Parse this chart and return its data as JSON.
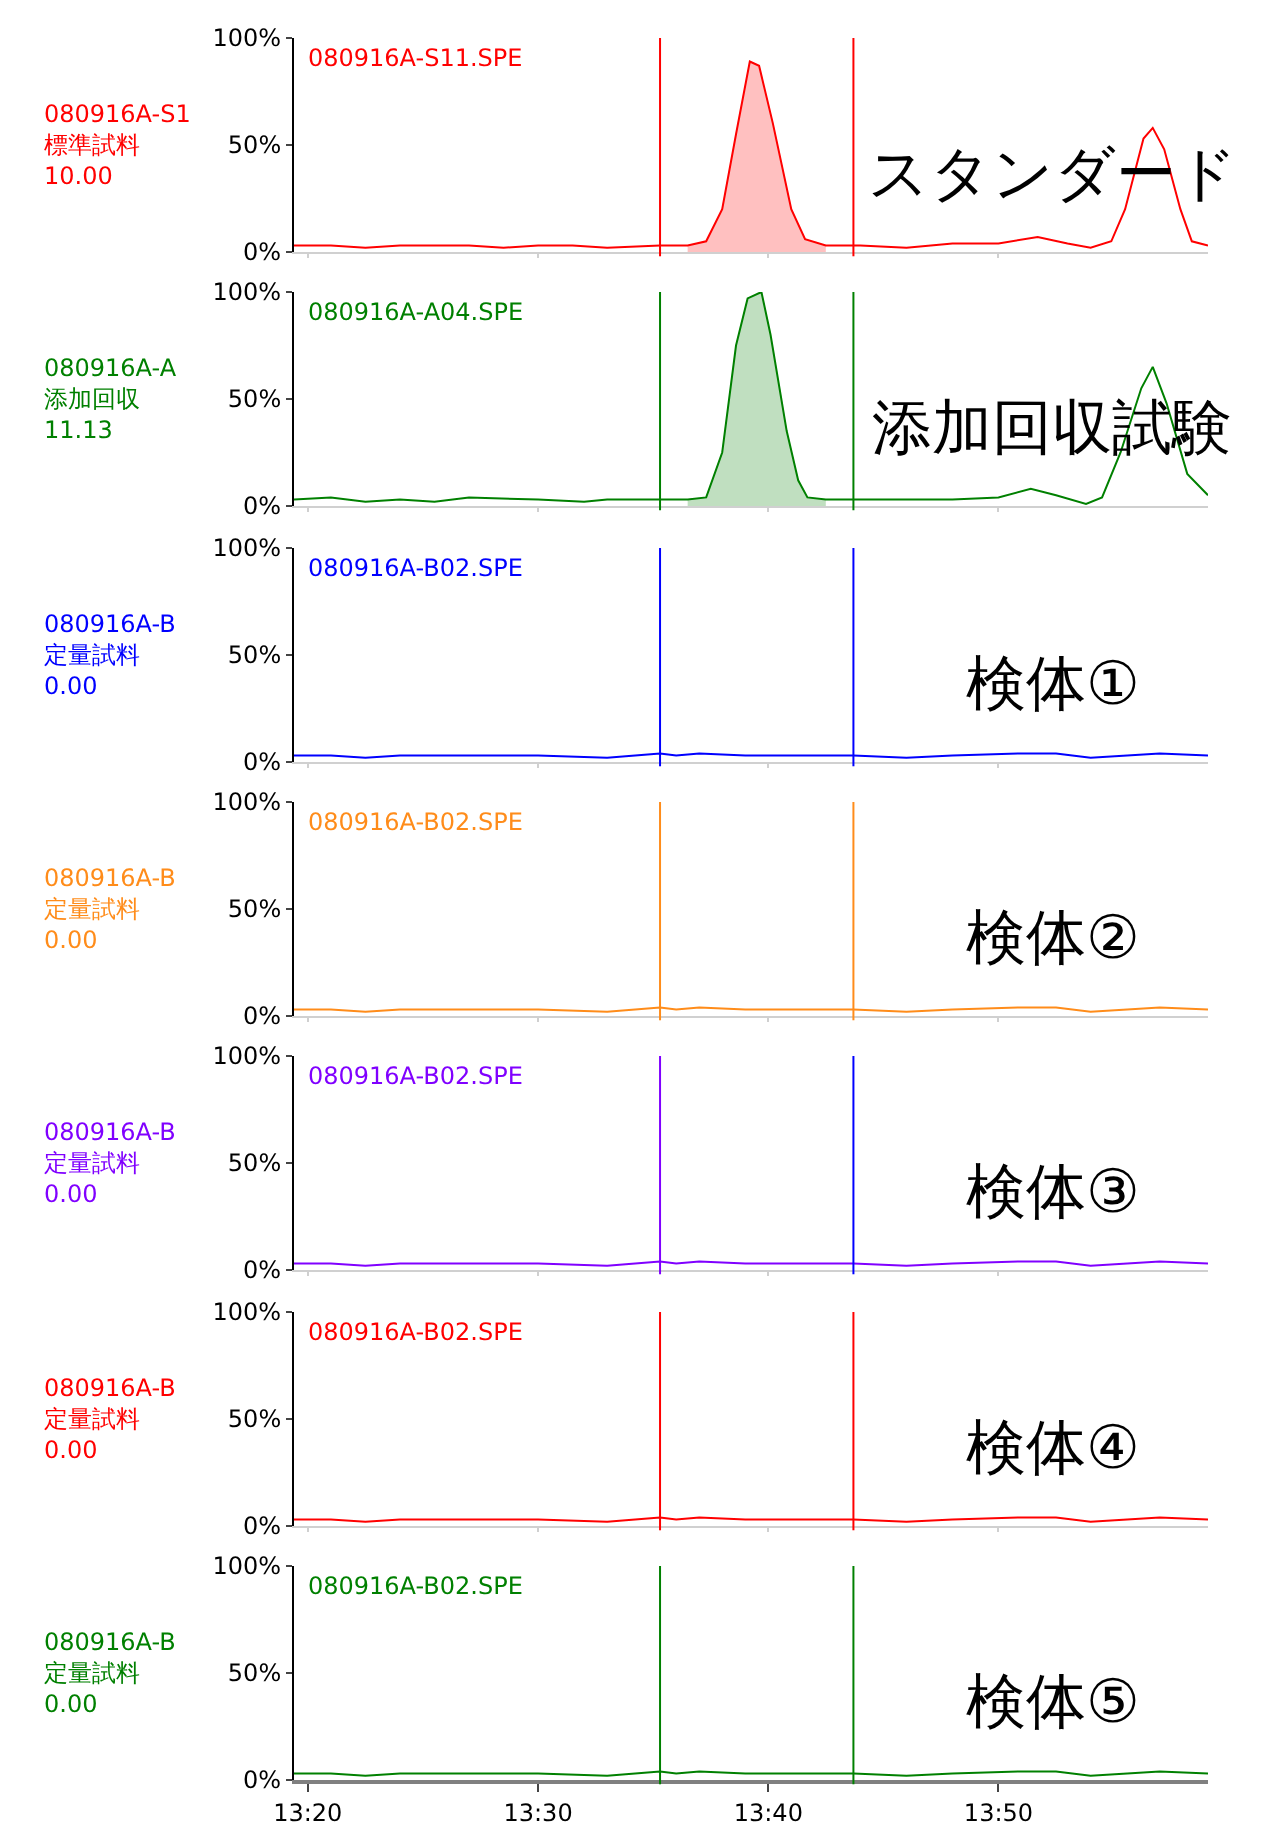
{
  "chart_data": [
    {
      "type": "line",
      "title": "080916A-S11.SPE",
      "annotations": [
        "080916A-S1\n標準試料\n10.00",
        "スタンダード"
      ],
      "xlim": [
        13.3233,
        13.985
      ],
      "xticks": [
        {
          "value": 13.3333,
          "label": null
        },
        {
          "value": 13.5,
          "label": null
        },
        {
          "value": 13.6667,
          "label": null
        },
        {
          "value": 13.8333,
          "label": null
        }
      ],
      "ylim": [
        0,
        100
      ],
      "yticks": [
        {
          "value": 0,
          "label": "0%"
        },
        {
          "value": 50,
          "label": "50%"
        },
        {
          "value": 100,
          "label": "100%"
        }
      ],
      "tick_labels": "y",
      "ref_lines": [
        {
          "axis": "x",
          "value": 13.5883,
          "color": "#ff0000"
        },
        {
          "axis": "x",
          "value": 13.7283,
          "color": "#ff0000"
        }
      ],
      "series": [
        {
          "type": "area",
          "color": "#ffc0c0",
          "x": [
            13.6083,
            13.6217,
            13.6333,
            13.6433,
            13.6533,
            13.66,
            13.67,
            13.6833,
            13.6933,
            13.7083
          ],
          "values": [
            3,
            5,
            20,
            55,
            89,
            87,
            60,
            20,
            6,
            3
          ]
        },
        {
          "color": "#ff0000",
          "x": [
            13.3233,
            13.35,
            13.375,
            13.4,
            13.45,
            13.475,
            13.5,
            13.525,
            13.55,
            13.5883,
            13.6083,
            13.6217,
            13.6333,
            13.6433,
            13.6533,
            13.66,
            13.67,
            13.6833,
            13.6933,
            13.7083,
            13.7333,
            13.7667,
            13.8,
            13.8333,
            13.8617,
            13.8833,
            13.9,
            13.915,
            13.925,
            13.9383,
            13.945,
            13.9533,
            13.965,
            13.9733,
            13.985
          ],
          "values": [
            3,
            3,
            2,
            3,
            3,
            2,
            3,
            3,
            2,
            3,
            3,
            5,
            20,
            55,
            89,
            87,
            60,
            20,
            6,
            3,
            3,
            2,
            4,
            4,
            7,
            4,
            2,
            5,
            20,
            53,
            58,
            48,
            20,
            5,
            3
          ]
        }
      ]
    },
    {
      "type": "line",
      "title": "080916A-A04.SPE",
      "annotations": [
        "080916A-A\n添加回収\n11.13",
        "添加回収試験"
      ],
      "xlim": [
        13.3233,
        13.985
      ],
      "xticks": [
        {
          "value": 13.3333,
          "label": null
        },
        {
          "value": 13.5,
          "label": null
        },
        {
          "value": 13.6667,
          "label": null
        },
        {
          "value": 13.8333,
          "label": null
        }
      ],
      "ylim": [
        0,
        100
      ],
      "yticks": [
        {
          "value": 0,
          "label": "0%"
        },
        {
          "value": 50,
          "label": "50%"
        },
        {
          "value": 100,
          "label": "100%"
        }
      ],
      "tick_labels": "y",
      "ref_lines": [
        {
          "axis": "x",
          "value": 13.5883,
          "color": "#008000"
        },
        {
          "axis": "x",
          "value": 13.7283,
          "color": "#008000"
        }
      ],
      "series": [
        {
          "type": "area",
          "color": "#c0dfc0",
          "x": [
            13.6083,
            13.6217,
            13.6333,
            13.6433,
            13.6517,
            13.6617,
            13.6683,
            13.68,
            13.6883,
            13.695,
            13.7083
          ],
          "values": [
            3,
            4,
            25,
            75,
            97,
            100,
            80,
            35,
            12,
            4,
            3
          ]
        },
        {
          "color": "#008000",
          "x": [
            13.3233,
            13.35,
            13.375,
            13.4,
            13.425,
            13.45,
            13.5,
            13.5333,
            13.55,
            13.5883,
            13.6083,
            13.6217,
            13.6333,
            13.6433,
            13.6517,
            13.6617,
            13.6683,
            13.68,
            13.6883,
            13.695,
            13.7083,
            13.7333,
            13.7667,
            13.8,
            13.8333,
            13.8567,
            13.875,
            13.8967,
            13.9083,
            13.9217,
            13.9367,
            13.945,
            13.955,
            13.97,
            13.985
          ],
          "values": [
            3,
            4,
            2,
            3,
            2,
            4,
            3,
            2,
            3,
            3,
            3,
            4,
            25,
            75,
            97,
            100,
            80,
            35,
            12,
            4,
            3,
            3,
            3,
            3,
            4,
            8,
            5,
            1,
            4,
            25,
            55,
            65,
            48,
            15,
            5
          ]
        }
      ]
    },
    {
      "type": "line",
      "title": "080916A-B02.SPE",
      "annotations": [
        "080916A-B\n定量試料\n0.00",
        "検体①"
      ],
      "xlim": [
        13.3233,
        13.985
      ],
      "xticks": [
        {
          "value": 13.3333,
          "label": null
        },
        {
          "value": 13.5,
          "label": null
        },
        {
          "value": 13.6667,
          "label": null
        },
        {
          "value": 13.8333,
          "label": null
        }
      ],
      "ylim": [
        0,
        100
      ],
      "yticks": [
        {
          "value": 0,
          "label": "0%"
        },
        {
          "value": 50,
          "label": "50%"
        },
        {
          "value": 100,
          "label": "100%"
        }
      ],
      "tick_labels": "y",
      "ref_lines": [
        {
          "axis": "x",
          "value": 13.5883,
          "color": "#0000ff"
        },
        {
          "axis": "x",
          "value": 13.7283,
          "color": "#0000ff"
        }
      ],
      "series": [
        {
          "color": "#0000ff",
          "x": [
            13.3233,
            13.35,
            13.375,
            13.4,
            13.45,
            13.5,
            13.55,
            13.5883,
            13.6,
            13.6167,
            13.65,
            13.7,
            13.7283,
            13.7667,
            13.8,
            13.85,
            13.875,
            13.9,
            13.95,
            13.985
          ],
          "values": [
            3,
            3,
            2,
            3,
            3,
            3,
            2,
            4,
            3,
            4,
            3,
            3,
            3,
            2,
            3,
            4,
            4,
            2,
            4,
            3
          ]
        }
      ]
    },
    {
      "type": "line",
      "title": "080916A-B02.SPE",
      "annotations": [
        "080916A-B\n定量試料\n0.00",
        "検体②"
      ],
      "xlim": [
        13.3233,
        13.985
      ],
      "xticks": [
        {
          "value": 13.3333,
          "label": null
        },
        {
          "value": 13.5,
          "label": null
        },
        {
          "value": 13.6667,
          "label": null
        },
        {
          "value": 13.8333,
          "label": null
        }
      ],
      "ylim": [
        0,
        100
      ],
      "yticks": [
        {
          "value": 0,
          "label": "0%"
        },
        {
          "value": 50,
          "label": "50%"
        },
        {
          "value": 100,
          "label": "100%"
        }
      ],
      "tick_labels": "y",
      "ref_lines": [
        {
          "axis": "x",
          "value": 13.5883,
          "color": "#ff8c1a"
        },
        {
          "axis": "x",
          "value": 13.7283,
          "color": "#ff8c1a"
        }
      ],
      "series": [
        {
          "color": "#ff8c1a",
          "x": [
            13.3233,
            13.35,
            13.375,
            13.4,
            13.45,
            13.5,
            13.55,
            13.5883,
            13.6,
            13.6167,
            13.65,
            13.7,
            13.7283,
            13.7667,
            13.8,
            13.85,
            13.875,
            13.9,
            13.95,
            13.985
          ],
          "values": [
            3,
            3,
            2,
            3,
            3,
            3,
            2,
            4,
            3,
            4,
            3,
            3,
            3,
            2,
            3,
            4,
            4,
            2,
            4,
            3
          ]
        }
      ]
    },
    {
      "type": "line",
      "title": "080916A-B02.SPE",
      "annotations": [
        "080916A-B\n定量試料\n0.00",
        "検体③"
      ],
      "xlim": [
        13.3233,
        13.985
      ],
      "xticks": [
        {
          "value": 13.3333,
          "label": null
        },
        {
          "value": 13.5,
          "label": null
        },
        {
          "value": 13.6667,
          "label": null
        },
        {
          "value": 13.8333,
          "label": null
        }
      ],
      "ylim": [
        0,
        100
      ],
      "yticks": [
        {
          "value": 0,
          "label": "0%"
        },
        {
          "value": 50,
          "label": "50%"
        },
        {
          "value": 100,
          "label": "100%"
        }
      ],
      "tick_labels": "y",
      "ref_lines": [
        {
          "axis": "x",
          "value": 13.5883,
          "color": "#8000ff"
        },
        {
          "axis": "x",
          "value": 13.7283,
          "color": "#0000ff"
        }
      ],
      "series": [
        {
          "color": "#8000ff",
          "x": [
            13.3233,
            13.35,
            13.375,
            13.4,
            13.45,
            13.5,
            13.55,
            13.5883,
            13.6,
            13.6167,
            13.65,
            13.7,
            13.7283,
            13.7667,
            13.8,
            13.85,
            13.875,
            13.9,
            13.95,
            13.985
          ],
          "values": [
            3,
            3,
            2,
            3,
            3,
            3,
            2,
            4,
            3,
            4,
            3,
            3,
            3,
            2,
            3,
            4,
            4,
            2,
            4,
            3
          ]
        }
      ]
    },
    {
      "type": "line",
      "title": "080916A-B02.SPE",
      "annotations": [
        "080916A-B\n定量試料\n0.00",
        "検体④"
      ],
      "xlim": [
        13.3233,
        13.985
      ],
      "xticks": [
        {
          "value": 13.3333,
          "label": null
        },
        {
          "value": 13.5,
          "label": null
        },
        {
          "value": 13.6667,
          "label": null
        },
        {
          "value": 13.8333,
          "label": null
        }
      ],
      "ylim": [
        0,
        100
      ],
      "yticks": [
        {
          "value": 0,
          "label": "0%"
        },
        {
          "value": 50,
          "label": "50%"
        },
        {
          "value": 100,
          "label": "100%"
        }
      ],
      "tick_labels": "y",
      "ref_lines": [
        {
          "axis": "x",
          "value": 13.5883,
          "color": "#ff0000"
        },
        {
          "axis": "x",
          "value": 13.7283,
          "color": "#ff0000"
        }
      ],
      "series": [
        {
          "color": "#ff0000",
          "x": [
            13.3233,
            13.35,
            13.375,
            13.4,
            13.45,
            13.5,
            13.55,
            13.5883,
            13.6,
            13.6167,
            13.65,
            13.7,
            13.7283,
            13.7667,
            13.8,
            13.85,
            13.875,
            13.9,
            13.95,
            13.985
          ],
          "values": [
            3,
            3,
            2,
            3,
            3,
            3,
            2,
            4,
            3,
            4,
            3,
            3,
            3,
            2,
            3,
            4,
            4,
            2,
            4,
            3
          ]
        }
      ]
    },
    {
      "type": "line",
      "title": "080916A-B02.SPE",
      "annotations": [
        "080916A-B\n定量試料\n0.00",
        "検体⑤"
      ],
      "xlim": [
        13.3233,
        13.985
      ],
      "xticks": [
        {
          "value": 13.3333,
          "label": "13:20"
        },
        {
          "value": 13.5,
          "label": "13:30"
        },
        {
          "value": 13.6667,
          "label": "13:40"
        },
        {
          "value": 13.8333,
          "label": "13:50"
        }
      ],
      "ylim": [
        0,
        100
      ],
      "yticks": [
        {
          "value": 0,
          "label": "0%"
        },
        {
          "value": 50,
          "label": "50%"
        },
        {
          "value": 100,
          "label": "100%"
        }
      ],
      "ref_lines": [
        {
          "axis": "x",
          "value": 13.5883,
          "color": "#008000"
        },
        {
          "axis": "x",
          "value": 13.7283,
          "color": "#008000"
        }
      ],
      "series": [
        {
          "color": "#008000",
          "x": [
            13.3233,
            13.35,
            13.375,
            13.4,
            13.45,
            13.5,
            13.55,
            13.5883,
            13.6,
            13.6167,
            13.65,
            13.7,
            13.7283,
            13.7667,
            13.8,
            13.85,
            13.875,
            13.9,
            13.95,
            13.985
          ],
          "values": [
            3,
            3,
            2,
            3,
            3,
            3,
            2,
            4,
            3,
            4,
            3,
            3,
            3,
            2,
            3,
            4,
            4,
            2,
            4,
            3
          ]
        }
      ]
    }
  ]
}
